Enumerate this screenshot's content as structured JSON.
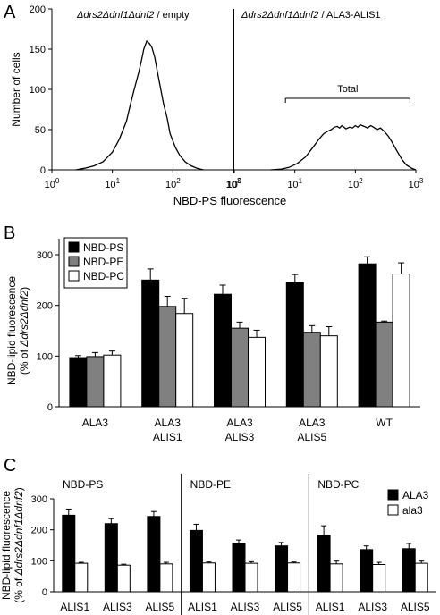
{
  "panel_letters": {
    "a": "A",
    "b": "B",
    "c": "C"
  },
  "chart_data": [
    {
      "panel": "A",
      "type": "line",
      "x_scale": "log",
      "xlabel": "NBD-PS fluorescence",
      "ylabel": "Number of cells",
      "xlim": [
        1,
        1000
      ],
      "ylim": [
        0,
        200
      ],
      "x_tick_labels": [
        "10",
        "10",
        "10",
        "10"
      ],
      "x_tick_exponents": [
        "0",
        "1",
        "2",
        "3"
      ],
      "x_tick_values": [
        1,
        10,
        100,
        1000
      ],
      "y_ticks": [
        0,
        50,
        100,
        150,
        200
      ],
      "subplots": [
        {
          "title": "Δdrs2Δdnf1Δdnf2 / empty",
          "title_prefix": "Δ",
          "title_parts": [
            "drs2",
            "Δ",
            "dnf1",
            "Δ",
            "dnf2",
            " / empty"
          ],
          "series": [
            {
              "x": [
                2.5,
                3.5,
                5,
                7,
                10,
                13,
                17,
                20,
                23,
                27,
                30,
                33,
                37,
                41,
                45,
                50,
                56,
                63,
                70,
                80,
                90,
                110,
                130,
                160,
                200,
                250,
                320
              ],
              "y": [
                0,
                2,
                5,
                10,
                22,
                38,
                60,
                82,
                100,
                120,
                135,
                150,
                160,
                157,
                152,
                140,
                120,
                100,
                82,
                65,
                45,
                28,
                18,
                10,
                5,
                2,
                0
              ]
            }
          ]
        },
        {
          "title": "Δdrs2Δdnf1Δdnf2 / ALA3-ALIS1",
          "title_prefix": "Δ",
          "title_parts": [
            "drs2",
            "Δ",
            "dnf1",
            "Δ",
            "dnf2",
            " / ALA3-ALIS1"
          ],
          "annotation": "Total",
          "annotation_range": [
            7,
            800
          ],
          "series": [
            {
              "x": [
                4,
                6,
                8,
                11,
                15,
                20,
                25,
                30,
                35,
                40,
                45,
                50,
                55,
                60,
                70,
                80,
                90,
                100,
                110,
                120,
                140,
                160,
                180,
                200,
                230,
                260,
                300,
                350,
                400,
                500,
                600,
                700,
                850,
                1000
              ],
              "y": [
                0,
                1,
                3,
                8,
                16,
                28,
                38,
                45,
                48,
                50,
                53,
                54,
                52,
                55,
                51,
                53,
                52,
                55,
                53,
                56,
                54,
                52,
                55,
                53,
                50,
                52,
                48,
                42,
                35,
                22,
                12,
                6,
                2,
                0
              ]
            }
          ]
        }
      ]
    },
    {
      "panel": "B",
      "type": "bar",
      "ylabel": "NBD-lipid fluorescence",
      "ylabel2_parts": [
        "(% of ",
        "Δ",
        "drs2",
        "Δ",
        "dnf2",
        ")"
      ],
      "ylim": [
        0,
        300
      ],
      "y_ticks": [
        0,
        100,
        200,
        300
      ],
      "legend_position": "top-left",
      "categories": [
        [
          "ALA3"
        ],
        [
          "ALA3",
          "ALIS1"
        ],
        [
          "ALA3",
          "ALIS3"
        ],
        [
          "ALA3",
          "ALIS5"
        ],
        [
          "WT"
        ]
      ],
      "series": [
        {
          "name": "NBD-PS",
          "color": "#000000",
          "values": [
            97,
            250,
            222,
            245,
            282
          ],
          "errors": [
            4,
            22,
            18,
            16,
            14
          ]
        },
        {
          "name": "NBD-PE",
          "color": "#808080",
          "values": [
            99,
            198,
            155,
            147,
            167
          ],
          "errors": [
            8,
            20,
            12,
            13,
            2
          ]
        },
        {
          "name": "NBD-PC",
          "color": "#ffffff",
          "values": [
            102,
            184,
            137,
            140,
            262
          ],
          "errors": [
            8,
            30,
            14,
            18,
            22
          ]
        }
      ]
    },
    {
      "panel": "C",
      "type": "bar",
      "ylabel": "NBD-lipid fluorescence",
      "ylabel2_parts": [
        "(% of ",
        "Δ",
        "drs2",
        "Δ",
        "dnf1",
        "Δ",
        "dnf2",
        ")"
      ],
      "ylim": [
        0,
        300
      ],
      "y_ticks": [
        0,
        100,
        200,
        300
      ],
      "legend_position": "top-right",
      "legend": [
        {
          "name": "ALA3",
          "color": "#000000"
        },
        {
          "name": "ala3",
          "color": "#ffffff"
        }
      ],
      "groups": [
        {
          "title": "NBD-PS",
          "categories": [
            "ALIS1",
            "ALIS3",
            "ALIS5"
          ],
          "series": [
            {
              "name": "ALA3",
              "values": [
                247,
                220,
                243
              ],
              "errors": [
                20,
                16,
                16
              ]
            },
            {
              "name": "ala3",
              "values": [
                92,
                86,
                90
              ],
              "errors": [
                3,
                3,
                5
              ]
            }
          ]
        },
        {
          "title": "NBD-PE",
          "categories": [
            "ALIS1",
            "ALIS3",
            "ALIS5"
          ],
          "series": [
            {
              "name": "ALA3",
              "values": [
                198,
                157,
                148
              ],
              "errors": [
                20,
                10,
                11
              ]
            },
            {
              "name": "ala3",
              "values": [
                93,
                92,
                93
              ],
              "errors": [
                3,
                5,
                3
              ]
            }
          ]
        },
        {
          "title": "NBD-PC",
          "categories": [
            "ALIS1",
            "ALIS3",
            "ALIS5"
          ],
          "series": [
            {
              "name": "ALA3",
              "values": [
                183,
                136,
                139
              ],
              "errors": [
                30,
                12,
                17
              ]
            },
            {
              "name": "ala3",
              "values": [
                90,
                88,
                92
              ],
              "errors": [
                9,
                7,
                7
              ]
            }
          ]
        }
      ]
    }
  ]
}
